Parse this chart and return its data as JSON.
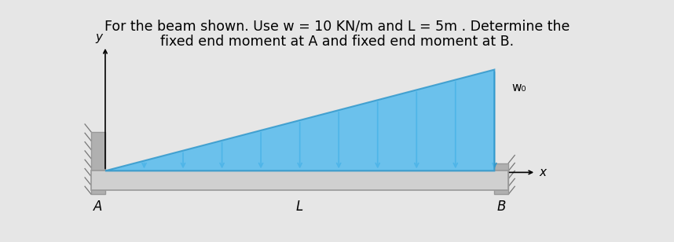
{
  "title_line1": "For the beam shown. Use w = 10 KN/m and L = 5m . Determine the",
  "title_line2": "fixed end moment at A and fixed end moment at B.",
  "title_fontsize": 12.5,
  "bg_color": "#e6e6e6",
  "beam_color": "#d0d0d0",
  "beam_border_color": "#999999",
  "wall_color": "#b0b0b0",
  "load_color": "#55bbee",
  "load_line_color": "#3399cc",
  "label_A": "A",
  "label_L": "L",
  "label_B": "B",
  "label_y": "y",
  "label_x": "x",
  "label_w0": "w₀",
  "num_arrows": 10
}
